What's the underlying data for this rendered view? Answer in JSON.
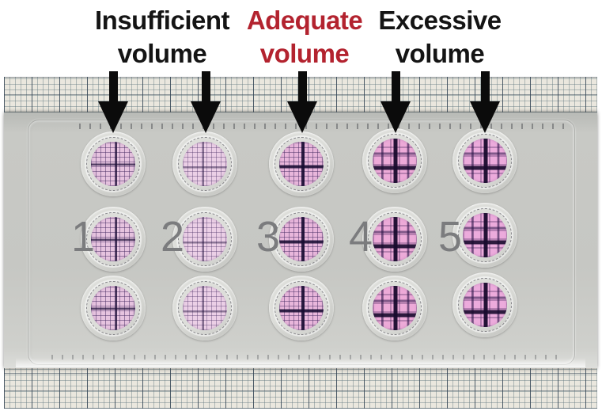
{
  "annotations": {
    "labels": [
      {
        "id": "insufficient",
        "line1": "Insufficient",
        "line2": "volume",
        "color": "#141414"
      },
      {
        "id": "adequate",
        "line1": "Adequate",
        "line2": "volume",
        "color": "#b3232f"
      },
      {
        "id": "excessive",
        "line1": "Excessive",
        "line2": "volume",
        "color": "#141414"
      }
    ],
    "arrows": [
      {
        "column": "1",
        "condition": "insufficient"
      },
      {
        "column": "2",
        "condition": "insufficient"
      },
      {
        "column": "3",
        "condition": "adequate"
      },
      {
        "column": "4",
        "condition": "excessive"
      },
      {
        "column": "5",
        "condition": "excessive"
      }
    ]
  },
  "plate": {
    "rows": 3,
    "columns": [
      {
        "number": "1",
        "condition": "insufficient",
        "membrane_color": "#e6c3df",
        "grid": "fine"
      },
      {
        "number": "2",
        "condition": "insufficient",
        "membrane_color": "#ebcfe6",
        "grid": "fine-light"
      },
      {
        "number": "3",
        "condition": "adequate",
        "membrane_color": "#e8b6db",
        "grid": "fine-cross"
      },
      {
        "number": "4",
        "condition": "excessive",
        "membrane_color": "#edaad8",
        "grid": "heavy"
      },
      {
        "number": "5",
        "condition": "excessive",
        "membrane_color": "#ecabdc",
        "grid": "heavy"
      }
    ]
  },
  "colors": {
    "label_black": "#141414",
    "label_red": "#b3232f",
    "column_number_gray": "#7b7c7e",
    "plate_gray": "#c6c7c3",
    "graph_paper": "#eae7de",
    "arrow_black": "#0b0b0b"
  }
}
